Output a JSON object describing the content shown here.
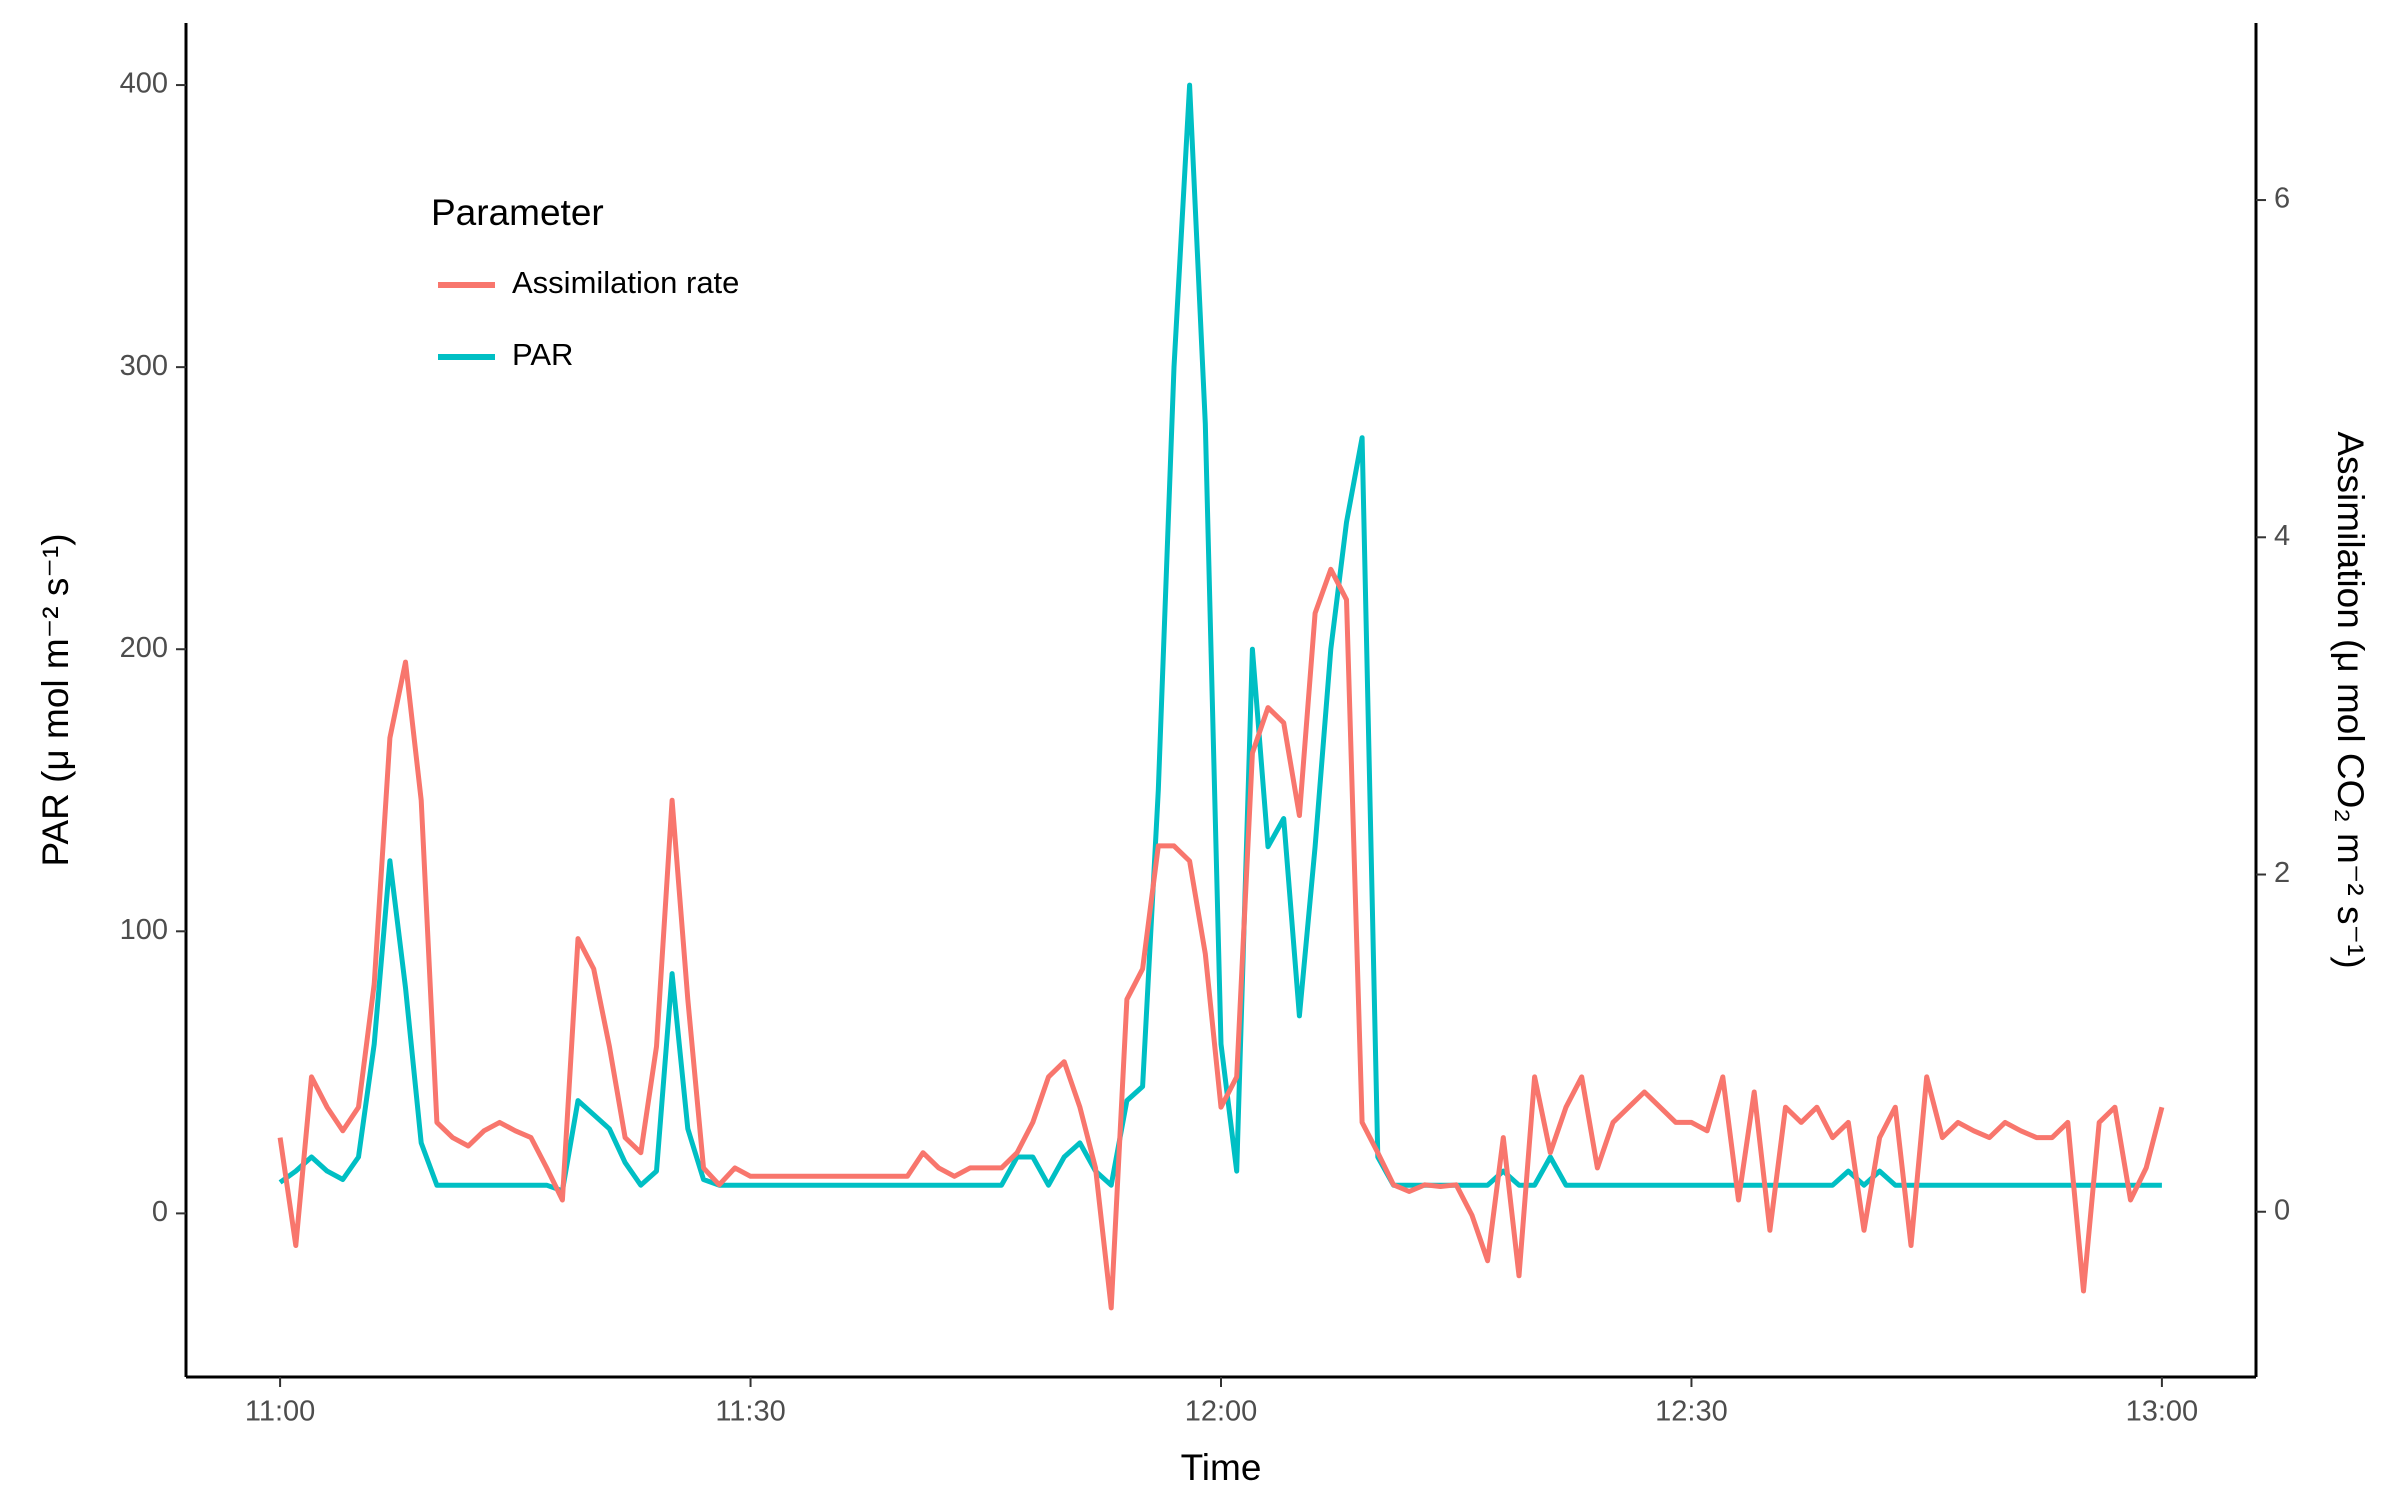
{
  "chart_data": {
    "type": "line",
    "x_label": "Time",
    "y_label": "PAR (μ mol m⁻² s⁻¹)",
    "y2_label": "Assimilation (μ mol CO₂ m⁻² s⁻¹)",
    "legend_title": "Parameter",
    "legend_position": "top-left",
    "x": [
      "11:00",
      "11:01",
      "11:02",
      "11:03",
      "11:04",
      "11:05",
      "11:06",
      "11:07",
      "11:08",
      "11:09",
      "11:10",
      "11:11",
      "11:12",
      "11:13",
      "11:14",
      "11:15",
      "11:16",
      "11:17",
      "11:18",
      "11:19",
      "11:20",
      "11:21",
      "11:22",
      "11:23",
      "11:24",
      "11:25",
      "11:26",
      "11:27",
      "11:28",
      "11:29",
      "11:30",
      "11:31",
      "11:32",
      "11:33",
      "11:34",
      "11:35",
      "11:36",
      "11:37",
      "11:38",
      "11:39",
      "11:40",
      "11:41",
      "11:42",
      "11:43",
      "11:44",
      "11:45",
      "11:46",
      "11:47",
      "11:48",
      "11:49",
      "11:50",
      "11:51",
      "11:52",
      "11:53",
      "11:54",
      "11:55",
      "11:56",
      "11:57",
      "11:58",
      "11:59",
      "12:00",
      "12:01",
      "12:02",
      "12:03",
      "12:04",
      "12:05",
      "12:06",
      "12:07",
      "12:08",
      "12:09",
      "12:10",
      "12:11",
      "12:12",
      "12:13",
      "12:14",
      "12:15",
      "12:16",
      "12:17",
      "12:18",
      "12:19",
      "12:20",
      "12:21",
      "12:22",
      "12:23",
      "12:24",
      "12:25",
      "12:26",
      "12:27",
      "12:28",
      "12:29",
      "12:30",
      "12:31",
      "12:32",
      "12:33",
      "12:34",
      "12:35",
      "12:36",
      "12:37",
      "12:38",
      "12:39",
      "12:40",
      "12:41",
      "12:42",
      "12:43",
      "12:44",
      "12:45",
      "12:46",
      "12:47",
      "12:48",
      "12:49",
      "12:50",
      "12:51",
      "12:52",
      "12:53",
      "12:54",
      "12:55",
      "12:56",
      "12:57",
      "12:58",
      "12:59",
      "13:00"
    ],
    "xlim": [
      "10:54",
      "13:06"
    ],
    "xticks": [
      "11:00",
      "11:30",
      "12:00",
      "12:30",
      "13:00"
    ],
    "ylim": [
      -58,
      422
    ],
    "yticks": [
      0,
      100,
      200,
      300,
      400
    ],
    "y2lim": [
      -0.98,
      7.05
    ],
    "y2ticks": [
      0,
      2,
      4,
      6
    ],
    "series": [
      {
        "name": "Assimilation rate",
        "color": "#F8766D",
        "axis": "y2",
        "values": [
          0.44,
          -0.2,
          0.8,
          0.62,
          0.48,
          0.62,
          1.35,
          2.81,
          3.26,
          2.44,
          0.53,
          0.44,
          0.39,
          0.48,
          0.53,
          0.48,
          0.44,
          0.26,
          0.07,
          1.62,
          1.44,
          0.98,
          0.44,
          0.35,
          0.98,
          2.44,
          1.26,
          0.26,
          0.16,
          0.26,
          0.21,
          0.21,
          0.21,
          0.21,
          0.21,
          0.21,
          0.21,
          0.21,
          0.21,
          0.21,
          0.21,
          0.35,
          0.26,
          0.21,
          0.26,
          0.26,
          0.26,
          0.35,
          0.53,
          0.8,
          0.89,
          0.62,
          0.26,
          -0.57,
          1.26,
          1.44,
          2.17,
          2.17,
          2.08,
          1.53,
          0.62,
          0.8,
          2.72,
          2.99,
          2.9,
          2.35,
          3.55,
          3.81,
          3.63,
          0.53,
          0.35,
          0.16,
          0.12,
          0.16,
          0.15,
          0.16,
          -0.02,
          -0.29,
          0.44,
          -0.38,
          0.8,
          0.35,
          0.62,
          0.8,
          0.26,
          0.53,
          0.62,
          0.71,
          0.62,
          0.53,
          0.53,
          0.48,
          0.8,
          0.07,
          0.71,
          -0.11,
          0.62,
          0.53,
          0.62,
          0.44,
          0.53,
          -0.11,
          0.44,
          0.62,
          -0.2,
          0.8,
          0.44,
          0.53,
          0.48,
          0.44,
          0.53,
          0.48,
          0.44,
          0.44,
          0.53,
          -0.47,
          0.53,
          0.62,
          0.07,
          0.26,
          0.62
        ]
      },
      {
        "name": "PAR",
        "color": "#00BFC4",
        "axis": "y",
        "values": [
          11,
          15,
          20,
          15,
          12,
          20,
          60,
          125,
          80,
          25,
          10,
          10,
          10,
          10,
          10,
          10,
          10,
          10,
          8,
          40,
          35,
          30,
          18,
          10,
          15,
          85,
          30,
          12,
          10,
          10,
          10,
          10,
          10,
          10,
          10,
          10,
          10,
          10,
          10,
          10,
          10,
          10,
          10,
          10,
          10,
          10,
          10,
          20,
          20,
          10,
          20,
          25,
          15,
          10,
          40,
          45,
          150,
          300,
          400,
          280,
          60,
          15,
          200,
          130,
          140,
          70,
          130,
          200,
          245,
          275,
          20,
          10,
          10,
          10,
          10,
          10,
          10,
          10,
          15,
          10,
          10,
          20,
          10,
          10,
          10,
          10,
          10,
          10,
          10,
          10,
          10,
          10,
          10,
          10,
          10,
          10,
          10,
          10,
          10,
          10,
          15,
          10,
          15,
          10,
          10,
          10,
          10,
          10,
          10,
          10,
          10,
          10,
          10,
          10,
          10,
          10,
          10,
          10,
          10,
          10,
          10
        ]
      }
    ]
  }
}
